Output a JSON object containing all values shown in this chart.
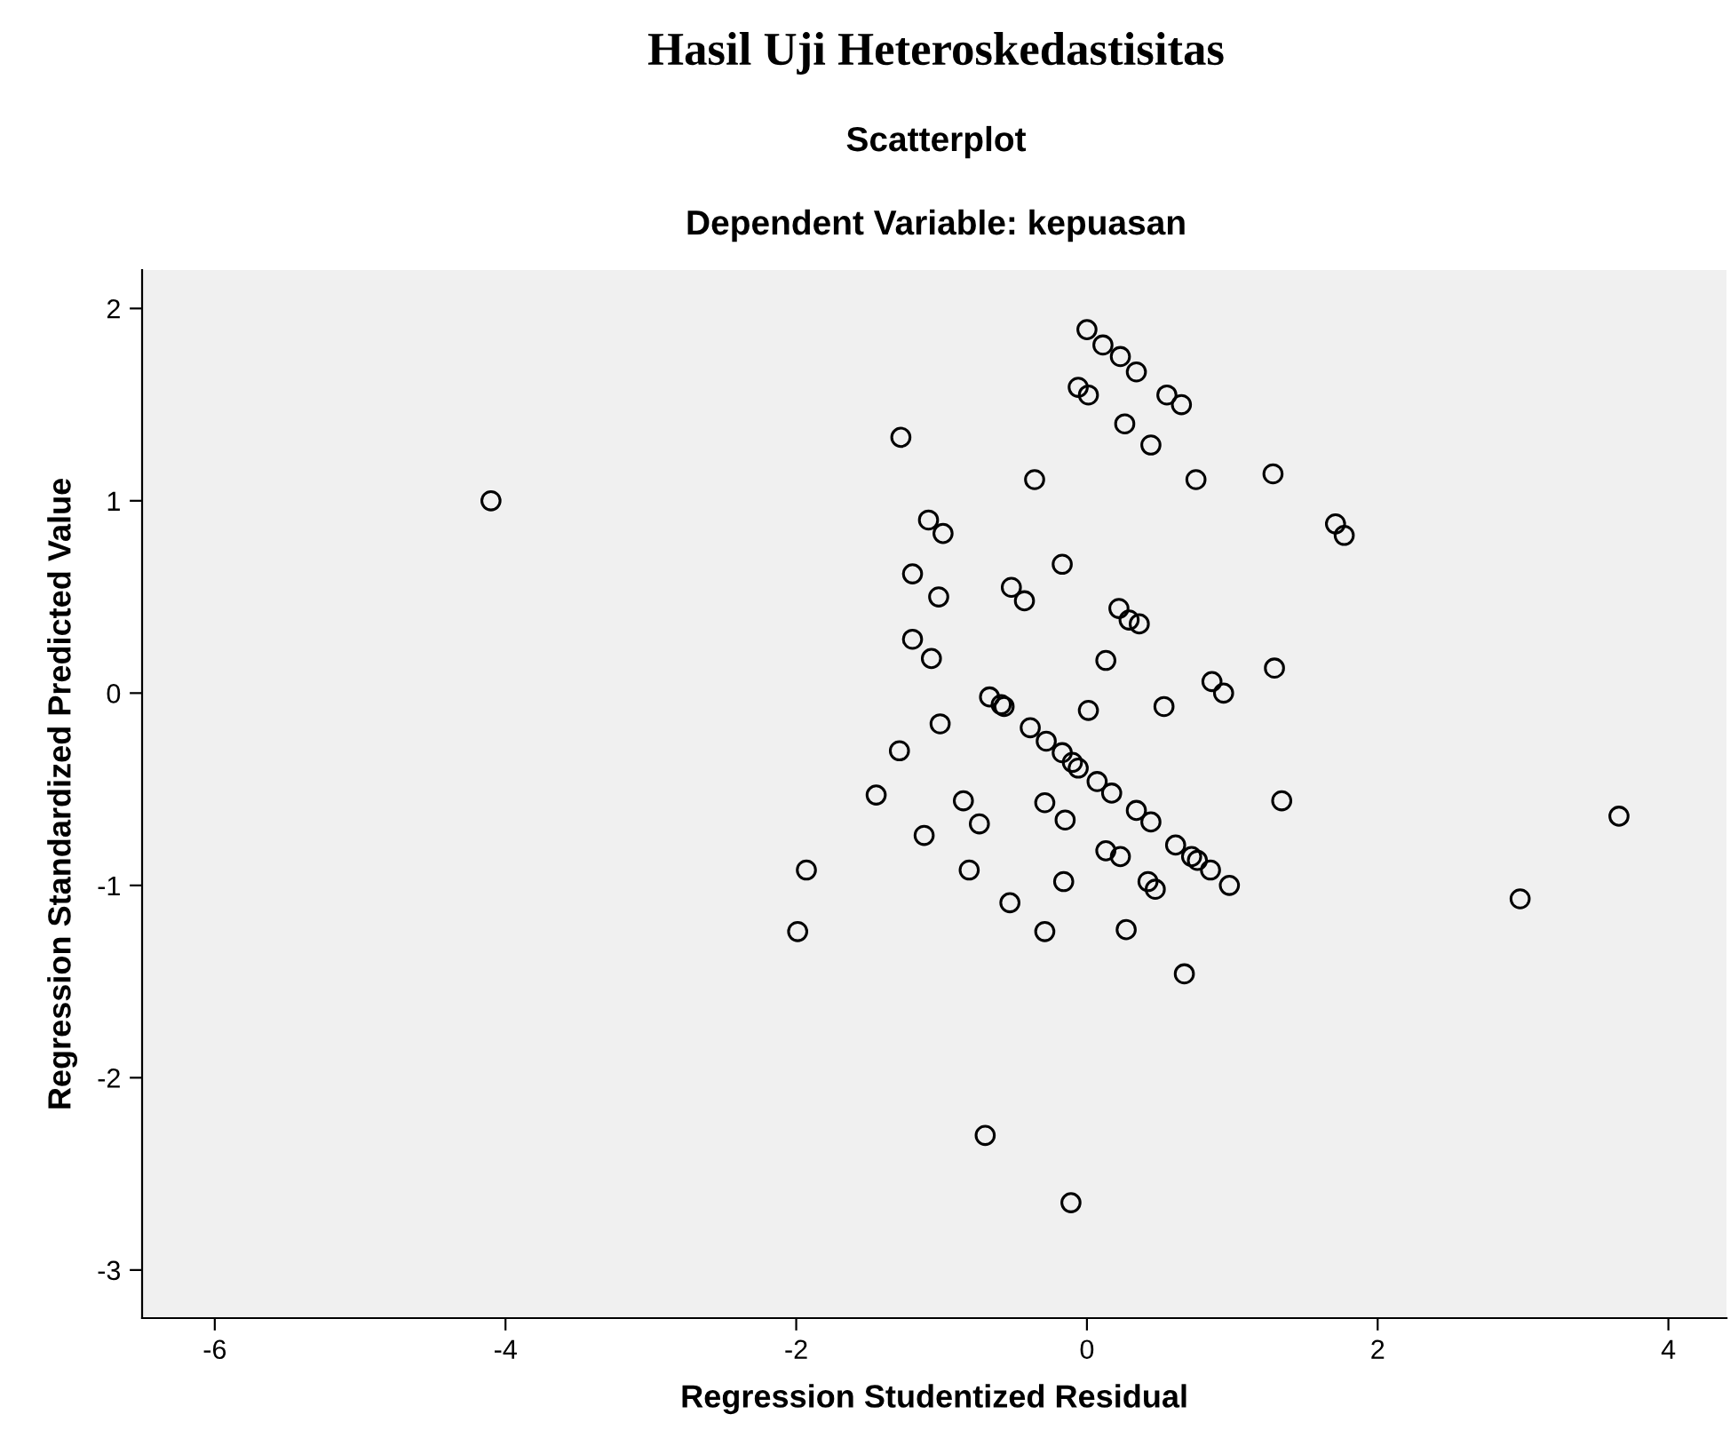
{
  "chart_data": {
    "type": "scatter",
    "title": "Scatterplot",
    "subtitle": "Dependent Variable: kepuasan",
    "annotations": [
      "Hasil Uji Heteroskedastisitas"
    ],
    "xlabel": "Regression Studentized Residual",
    "ylabel": "Regression Standardized Predicted Value",
    "xlim": [
      -6.5,
      4.4
    ],
    "ylim": [
      -3.25,
      2.2
    ],
    "xticks": [
      -6,
      -4,
      -2,
      0,
      2,
      4
    ],
    "yticks": [
      -3,
      -2,
      -1,
      0,
      1,
      2
    ],
    "grid": false,
    "marker": "circle",
    "series": [
      {
        "color": "#000000",
        "x": [
          -4.1,
          -1.28,
          -1.09,
          -0.99,
          -1.2,
          -1.02,
          -1.2,
          -1.07,
          -1.01,
          -1.29,
          -1.45,
          -1.12,
          -1.93,
          -1.99,
          0.0,
          0.11,
          0.23,
          0.34,
          -0.06,
          0.01,
          0.55,
          0.65,
          0.26,
          0.44,
          -0.36,
          0.75,
          1.28,
          1.71,
          1.77,
          -0.17,
          -0.52,
          -0.43,
          0.22,
          0.29,
          0.36,
          0.13,
          1.29,
          0.86,
          0.94,
          -0.67,
          -0.59,
          -0.57,
          0.01,
          0.53,
          -0.39,
          -0.28,
          -0.17,
          -0.1,
          -0.06,
          0.07,
          0.17,
          -0.85,
          -0.74,
          -0.29,
          -0.15,
          0.34,
          0.44,
          1.34,
          3.66,
          0.61,
          0.72,
          0.76,
          0.85,
          0.98,
          0.13,
          0.23,
          -0.81,
          -0.16,
          0.42,
          0.47,
          -0.53,
          -0.29,
          0.27,
          0.67,
          2.98,
          -0.7,
          -0.11
        ],
        "values": [
          1.0,
          1.33,
          0.9,
          0.83,
          0.62,
          0.5,
          0.28,
          0.18,
          -0.16,
          -0.3,
          -0.53,
          -0.74,
          -0.92,
          -1.24,
          1.89,
          1.81,
          1.75,
          1.67,
          1.59,
          1.55,
          1.55,
          1.5,
          1.4,
          1.29,
          1.11,
          1.11,
          1.14,
          0.88,
          0.82,
          0.67,
          0.55,
          0.48,
          0.44,
          0.38,
          0.36,
          0.17,
          0.13,
          0.06,
          0.0,
          -0.02,
          -0.06,
          -0.07,
          -0.09,
          -0.07,
          -0.18,
          -0.25,
          -0.31,
          -0.36,
          -0.39,
          -0.46,
          -0.52,
          -0.56,
          -0.68,
          -0.57,
          -0.66,
          -0.61,
          -0.67,
          -0.56,
          -0.64,
          -0.79,
          -0.85,
          -0.87,
          -0.92,
          -1.0,
          -0.82,
          -0.85,
          -0.92,
          -0.98,
          -0.98,
          -1.02,
          -1.09,
          -1.24,
          -1.23,
          -1.46,
          -1.07,
          -2.3,
          -2.65
        ]
      }
    ]
  }
}
